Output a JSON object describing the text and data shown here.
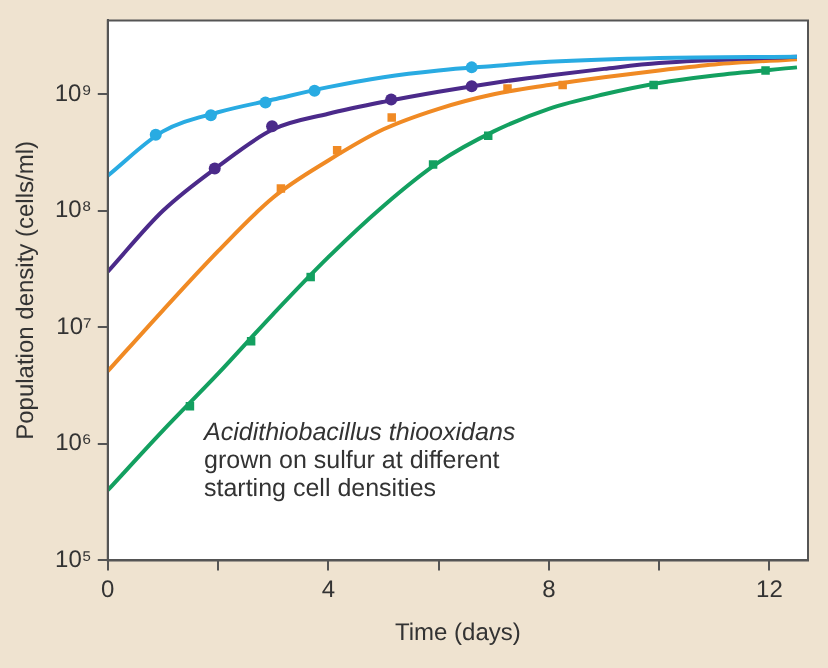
{
  "chart_data": {
    "type": "scatter",
    "xlabel": "Time (days)",
    "ylabel": "Population density (cells/ml)",
    "log": "y",
    "xlim": [
      0,
      12.7
    ],
    "xticks": [
      0,
      {
        "value": 2,
        "label": null
      },
      4,
      {
        "value": 6,
        "label": null
      },
      8,
      {
        "value": 10,
        "label": null
      },
      12
    ],
    "ylim": [
      100000,
      4300000000
    ],
    "yticks": [
      {
        "value": 100000,
        "label": "10⁵"
      },
      {
        "value": 1000000,
        "label": "10⁶"
      },
      {
        "value": 10000000,
        "label": "10⁷"
      },
      {
        "value": 100000000,
        "label": "10⁸"
      },
      {
        "value": 1000000000,
        "label": "10⁹"
      }
    ],
    "annotations": [
      "Acidithiobacillus thiooxidans",
      "grown on sulfur at different starting cell densities"
    ],
    "series": [
      {
        "marker": "circle",
        "color": "#29abe2",
        "x": [
          0.87,
          1.87,
          2.86,
          3.75,
          6.6
        ],
        "values": [
          450000000,
          660000000,
          850000000,
          1070000000,
          1700000000
        ]
      },
      {
        "marker": "circle",
        "color": "#4b2a8a",
        "x": [
          1.94,
          2.98,
          5.14,
          6.6
        ],
        "values": [
          230000000,
          530000000,
          900000000,
          1170000000
        ]
      },
      {
        "marker": "square",
        "color": "#f08a24",
        "x": [
          3.14,
          4.16,
          5.15,
          7.25,
          8.25
        ],
        "values": [
          155000000,
          330000000,
          630000000,
          1120000000,
          1200000000
        ]
      },
      {
        "marker": "square",
        "color": "#13a060",
        "x": [
          1.49,
          2.6,
          3.68,
          5.9,
          6.9,
          9.9,
          11.93
        ],
        "values": [
          2100000,
          7600000,
          27000000,
          250000000,
          440000000,
          1200000000,
          1600000000
        ]
      },
      {
        "type": "line",
        "marker": "none",
        "color": "#29abe2",
        "x": [
          0,
          1,
          2,
          3,
          4,
          5,
          6,
          7,
          8,
          10,
          12.5
        ],
        "values": [
          200000000,
          480000000,
          700000000,
          900000000,
          1150000000,
          1400000000,
          1600000000,
          1750000000,
          1900000000,
          2050000000,
          2100000000
        ]
      },
      {
        "type": "line",
        "marker": "none",
        "color": "#4b2a8a",
        "x": [
          0,
          1,
          2,
          3,
          4,
          5,
          6,
          7,
          8,
          9,
          10,
          12.5
        ],
        "values": [
          30000000,
          100000000,
          240000000,
          500000000,
          680000000,
          860000000,
          1050000000,
          1250000000,
          1450000000,
          1650000000,
          1850000000,
          2100000000
        ]
      },
      {
        "type": "line",
        "marker": "none",
        "color": "#f08a24",
        "x": [
          0,
          1,
          2,
          3,
          4,
          5,
          6,
          7,
          8,
          9,
          10,
          11,
          12.5
        ],
        "values": [
          4200000,
          14000000,
          45000000,
          130000000,
          270000000,
          500000000,
          750000000,
          1000000000,
          1200000000,
          1400000000,
          1600000000,
          1800000000,
          2000000000
        ]
      },
      {
        "type": "line",
        "marker": "none",
        "color": "#13a060",
        "x": [
          0,
          1,
          2,
          3,
          4,
          5,
          6,
          7,
          8,
          9,
          10,
          11,
          12.5
        ],
        "values": [
          400000,
          1300000,
          4000000,
          13000000,
          40000000,
          110000000,
          260000000,
          480000000,
          750000000,
          1000000000,
          1250000000,
          1450000000,
          1700000000
        ]
      }
    ]
  }
}
